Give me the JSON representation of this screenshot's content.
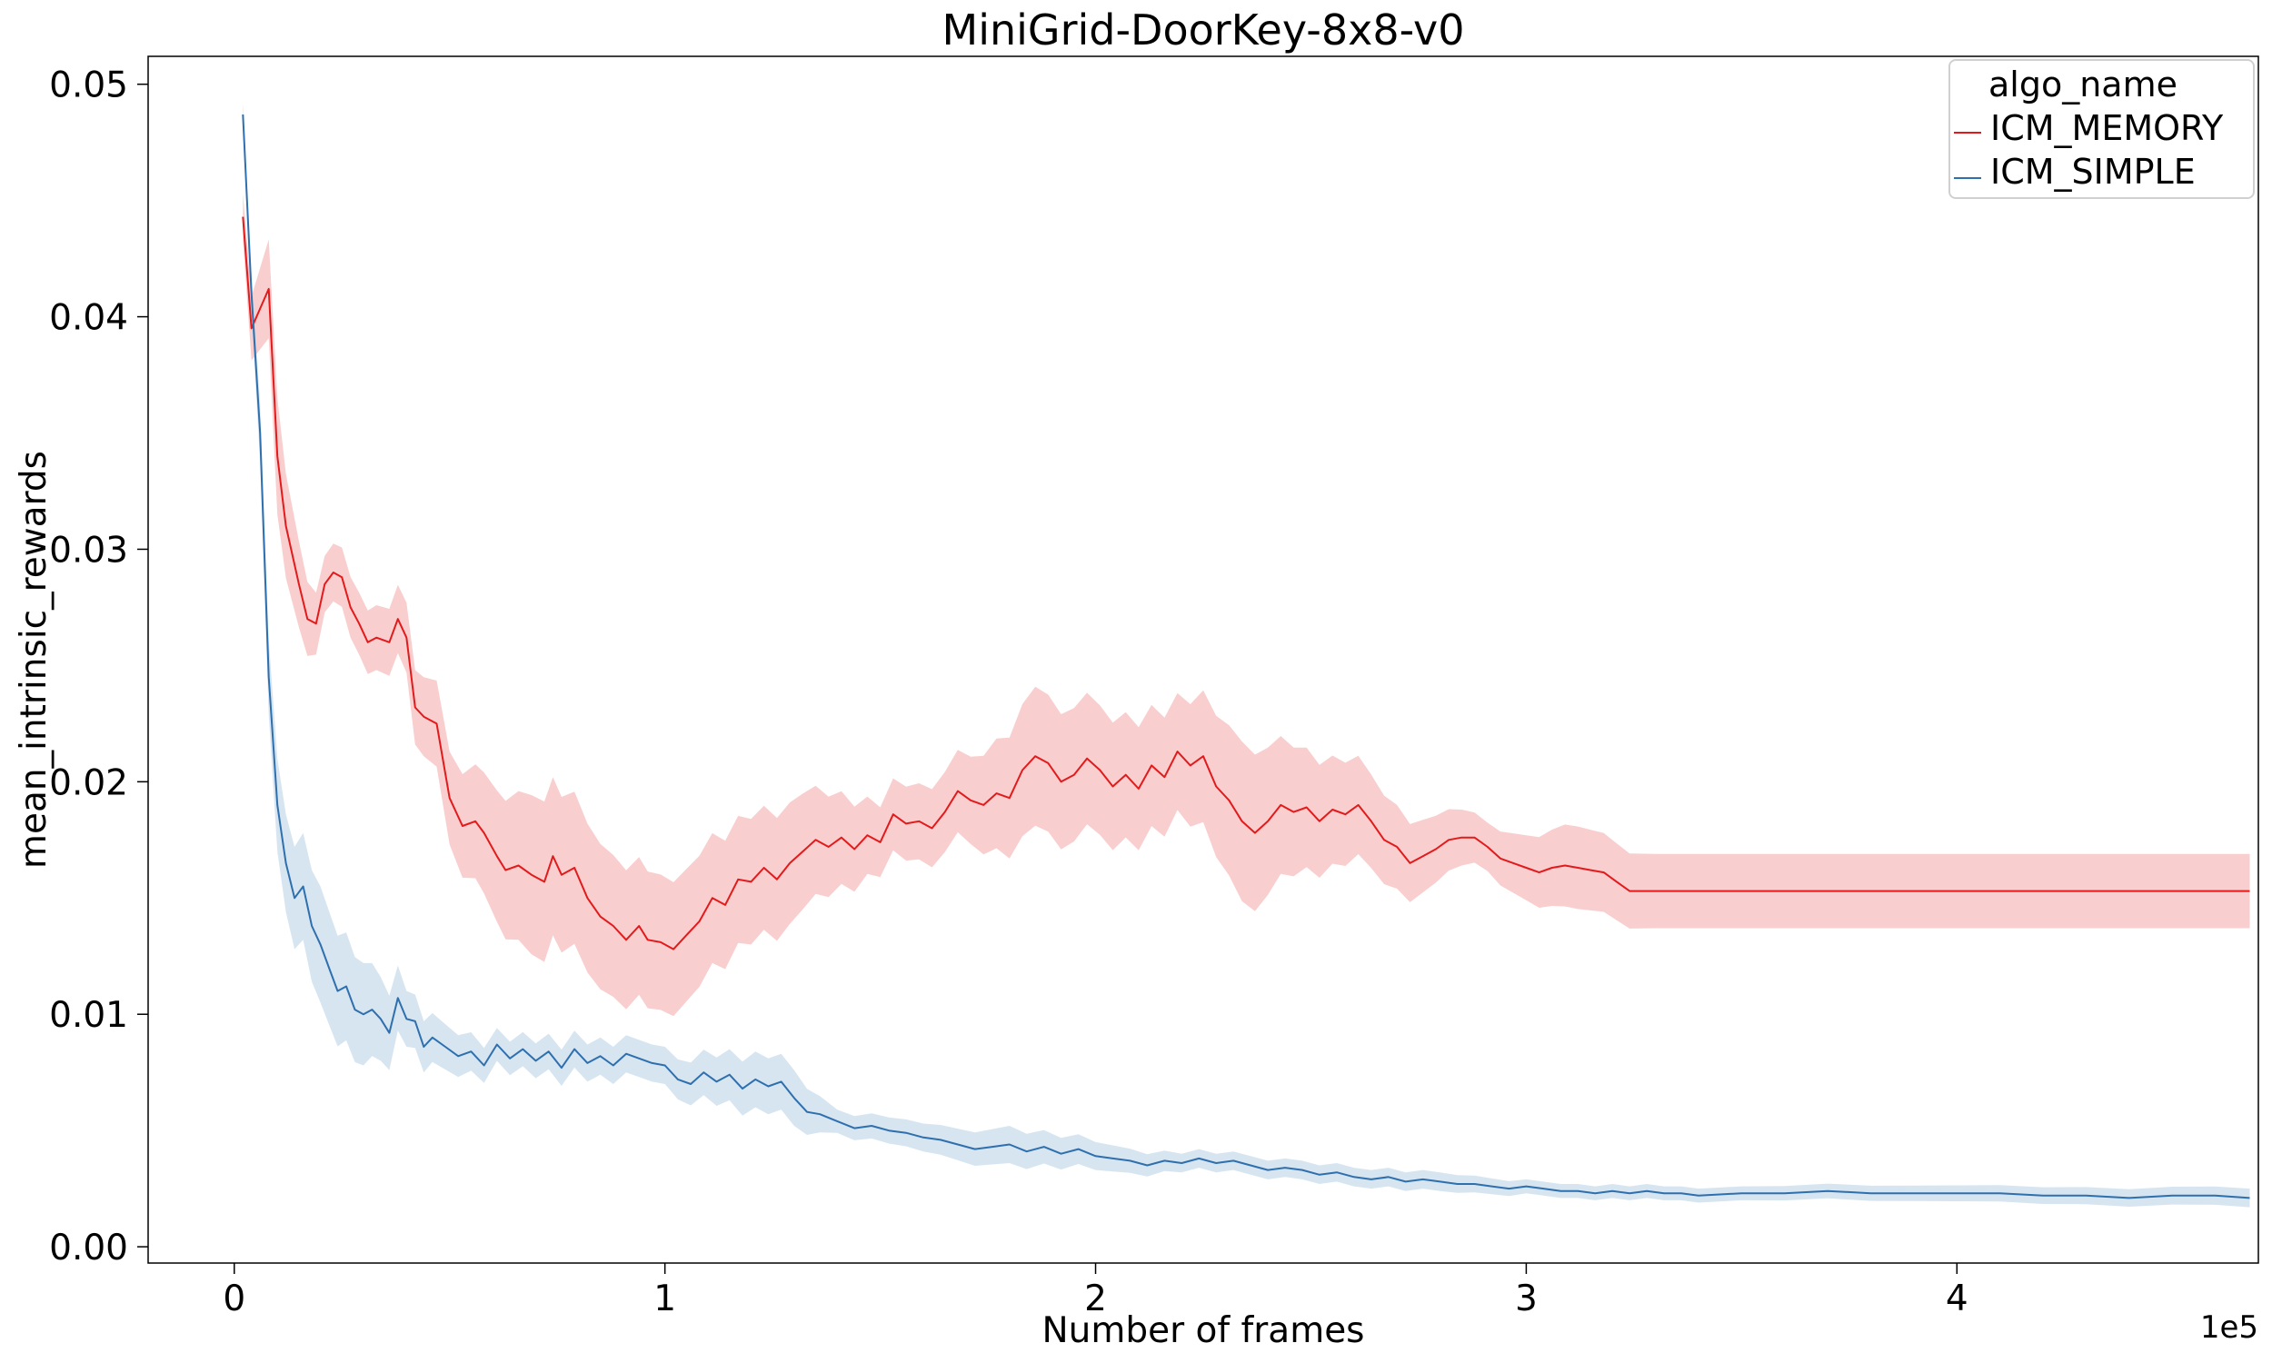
{
  "chart_data": {
    "type": "line",
    "title": "MiniGrid-DoorKey-8x8-v0",
    "xlabel": "Number of frames",
    "ylabel": "mean_intrinsic_rewards",
    "x_offset_label": "1e5",
    "xlim": [
      -0.2,
      4.7
    ],
    "ylim": [
      -0.0007,
      0.0512
    ],
    "x_ticks": [
      0,
      1,
      2,
      3,
      4
    ],
    "x_tick_labels": [
      "0",
      "1",
      "2",
      "3",
      "4"
    ],
    "y_ticks": [
      0.0,
      0.01,
      0.02,
      0.03,
      0.04,
      0.05
    ],
    "y_tick_labels": [
      "0.00",
      "0.01",
      "0.02",
      "0.03",
      "0.04",
      "0.05"
    ],
    "grid": false,
    "legend": {
      "title": "algo_name",
      "position": "top-right"
    },
    "series": [
      {
        "name": "ICM_MEMORY",
        "color": "#e31a1c",
        "band_color": "#f4a6a6",
        "points": [
          [
            0.02,
            0.0443
          ],
          [
            0.04,
            0.0395
          ],
          [
            0.08,
            0.0412
          ],
          [
            0.1,
            0.034
          ],
          [
            0.12,
            0.031
          ],
          [
            0.15,
            0.0285
          ],
          [
            0.17,
            0.027
          ],
          [
            0.19,
            0.0268
          ],
          [
            0.21,
            0.0285
          ],
          [
            0.23,
            0.029
          ],
          [
            0.25,
            0.0288
          ],
          [
            0.27,
            0.0275
          ],
          [
            0.29,
            0.0268
          ],
          [
            0.31,
            0.026
          ],
          [
            0.33,
            0.0262
          ],
          [
            0.36,
            0.026
          ],
          [
            0.38,
            0.027
          ],
          [
            0.4,
            0.0262
          ],
          [
            0.42,
            0.0232
          ],
          [
            0.44,
            0.0228
          ],
          [
            0.47,
            0.0225
          ],
          [
            0.5,
            0.0193
          ],
          [
            0.53,
            0.0181
          ],
          [
            0.56,
            0.0183
          ],
          [
            0.58,
            0.0178
          ],
          [
            0.61,
            0.0168
          ],
          [
            0.63,
            0.0162
          ],
          [
            0.66,
            0.0164
          ],
          [
            0.69,
            0.016
          ],
          [
            0.72,
            0.0157
          ],
          [
            0.74,
            0.0168
          ],
          [
            0.76,
            0.016
          ],
          [
            0.79,
            0.0163
          ],
          [
            0.82,
            0.015
          ],
          [
            0.85,
            0.0142
          ],
          [
            0.88,
            0.0138
          ],
          [
            0.91,
            0.0132
          ],
          [
            0.94,
            0.0138
          ],
          [
            0.96,
            0.0132
          ],
          [
            0.99,
            0.0131
          ],
          [
            1.02,
            0.0128
          ],
          [
            1.05,
            0.0134
          ],
          [
            1.08,
            0.014
          ],
          [
            1.11,
            0.015
          ],
          [
            1.14,
            0.0147
          ],
          [
            1.17,
            0.0158
          ],
          [
            1.2,
            0.0157
          ],
          [
            1.23,
            0.0163
          ],
          [
            1.26,
            0.0158
          ],
          [
            1.29,
            0.0165
          ],
          [
            1.32,
            0.017
          ],
          [
            1.35,
            0.0175
          ],
          [
            1.38,
            0.0172
          ],
          [
            1.41,
            0.0176
          ],
          [
            1.44,
            0.0171
          ],
          [
            1.47,
            0.0177
          ],
          [
            1.5,
            0.0174
          ],
          [
            1.53,
            0.0186
          ],
          [
            1.56,
            0.0182
          ],
          [
            1.59,
            0.0183
          ],
          [
            1.62,
            0.018
          ],
          [
            1.65,
            0.0187
          ],
          [
            1.68,
            0.0196
          ],
          [
            1.71,
            0.0192
          ],
          [
            1.74,
            0.019
          ],
          [
            1.77,
            0.0195
          ],
          [
            1.8,
            0.0193
          ],
          [
            1.83,
            0.0205
          ],
          [
            1.86,
            0.0211
          ],
          [
            1.89,
            0.0208
          ],
          [
            1.92,
            0.02
          ],
          [
            1.95,
            0.0203
          ],
          [
            1.98,
            0.021
          ],
          [
            2.01,
            0.0205
          ],
          [
            2.04,
            0.0198
          ],
          [
            2.07,
            0.0203
          ],
          [
            2.1,
            0.0197
          ],
          [
            2.13,
            0.0207
          ],
          [
            2.16,
            0.0202
          ],
          [
            2.19,
            0.0213
          ],
          [
            2.22,
            0.0207
          ],
          [
            2.25,
            0.0211
          ],
          [
            2.28,
            0.0198
          ],
          [
            2.31,
            0.0192
          ],
          [
            2.34,
            0.0183
          ],
          [
            2.37,
            0.0178
          ],
          [
            2.4,
            0.0183
          ],
          [
            2.43,
            0.019
          ],
          [
            2.46,
            0.0187
          ],
          [
            2.49,
            0.0189
          ],
          [
            2.52,
            0.0183
          ],
          [
            2.55,
            0.0188
          ],
          [
            2.58,
            0.0186
          ],
          [
            2.61,
            0.019
          ],
          [
            2.64,
            0.0183
          ],
          [
            2.67,
            0.0175
          ],
          [
            2.7,
            0.0172
          ],
          [
            2.73,
            0.0165
          ],
          [
            2.76,
            0.0168
          ],
          [
            2.79,
            0.0171
          ],
          [
            2.82,
            0.0175
          ],
          [
            2.85,
            0.0176
          ],
          [
            2.88,
            0.0176
          ],
          [
            2.91,
            0.0172
          ],
          [
            2.94,
            0.0167
          ],
          [
            2.97,
            0.0165
          ],
          [
            3.0,
            0.0163
          ],
          [
            3.03,
            0.0161
          ],
          [
            3.06,
            0.0163
          ],
          [
            3.09,
            0.0164
          ],
          [
            3.12,
            0.0163
          ],
          [
            3.15,
            0.0162
          ],
          [
            3.18,
            0.0161
          ],
          [
            3.21,
            0.0157
          ],
          [
            3.24,
            0.0153
          ],
          [
            3.3,
            0.0153
          ],
          [
            3.6,
            0.0153
          ],
          [
            4.0,
            0.0153
          ],
          [
            4.4,
            0.0153
          ],
          [
            4.68,
            0.0153
          ]
        ],
        "band_halfwidths": [
          [
            0.02,
            0.001
          ],
          [
            0.1,
            0.0025
          ],
          [
            0.2,
            0.0012
          ],
          [
            0.4,
            0.0015
          ],
          [
            0.5,
            0.002
          ],
          [
            0.7,
            0.0035
          ],
          [
            0.9,
            0.003
          ],
          [
            1.1,
            0.0028
          ],
          [
            1.3,
            0.0026
          ],
          [
            1.5,
            0.0015
          ],
          [
            1.7,
            0.0018
          ],
          [
            1.85,
            0.003
          ],
          [
            2.0,
            0.0028
          ],
          [
            2.2,
            0.0025
          ],
          [
            2.35,
            0.0035
          ],
          [
            2.5,
            0.0025
          ],
          [
            2.7,
            0.0018
          ],
          [
            2.9,
            0.001
          ],
          [
            3.1,
            0.0018
          ],
          [
            3.25,
            0.0016
          ],
          [
            4.68,
            0.0016
          ]
        ]
      },
      {
        "name": "ICM_SIMPLE",
        "color": "#2e6fae",
        "band_color": "#b7cfe6",
        "points": [
          [
            0.02,
            0.0487
          ],
          [
            0.04,
            0.041
          ],
          [
            0.06,
            0.035
          ],
          [
            0.08,
            0.0245
          ],
          [
            0.1,
            0.019
          ],
          [
            0.12,
            0.0165
          ],
          [
            0.14,
            0.015
          ],
          [
            0.16,
            0.0155
          ],
          [
            0.18,
            0.0138
          ],
          [
            0.2,
            0.013
          ],
          [
            0.22,
            0.012
          ],
          [
            0.24,
            0.011
          ],
          [
            0.26,
            0.0112
          ],
          [
            0.28,
            0.0102
          ],
          [
            0.3,
            0.01
          ],
          [
            0.32,
            0.0102
          ],
          [
            0.34,
            0.0098
          ],
          [
            0.36,
            0.0092
          ],
          [
            0.38,
            0.0107
          ],
          [
            0.4,
            0.0098
          ],
          [
            0.42,
            0.0097
          ],
          [
            0.44,
            0.0086
          ],
          [
            0.46,
            0.009
          ],
          [
            0.49,
            0.0086
          ],
          [
            0.52,
            0.0082
          ],
          [
            0.55,
            0.0084
          ],
          [
            0.58,
            0.0078
          ],
          [
            0.61,
            0.0087
          ],
          [
            0.64,
            0.0081
          ],
          [
            0.67,
            0.0085
          ],
          [
            0.7,
            0.008
          ],
          [
            0.73,
            0.0084
          ],
          [
            0.76,
            0.0077
          ],
          [
            0.79,
            0.0085
          ],
          [
            0.82,
            0.0079
          ],
          [
            0.85,
            0.0082
          ],
          [
            0.88,
            0.0078
          ],
          [
            0.91,
            0.0083
          ],
          [
            0.94,
            0.0081
          ],
          [
            0.97,
            0.0079
          ],
          [
            1.0,
            0.0078
          ],
          [
            1.03,
            0.0072
          ],
          [
            1.06,
            0.007
          ],
          [
            1.09,
            0.0075
          ],
          [
            1.12,
            0.0071
          ],
          [
            1.15,
            0.0074
          ],
          [
            1.18,
            0.0068
          ],
          [
            1.21,
            0.0072
          ],
          [
            1.24,
            0.0069
          ],
          [
            1.27,
            0.0071
          ],
          [
            1.3,
            0.0064
          ],
          [
            1.33,
            0.0058
          ],
          [
            1.36,
            0.0057
          ],
          [
            1.4,
            0.0054
          ],
          [
            1.44,
            0.0051
          ],
          [
            1.48,
            0.0052
          ],
          [
            1.52,
            0.005
          ],
          [
            1.56,
            0.0049
          ],
          [
            1.6,
            0.0047
          ],
          [
            1.64,
            0.0046
          ],
          [
            1.68,
            0.0044
          ],
          [
            1.72,
            0.0042
          ],
          [
            1.76,
            0.0043
          ],
          [
            1.8,
            0.0044
          ],
          [
            1.84,
            0.0041
          ],
          [
            1.88,
            0.0043
          ],
          [
            1.92,
            0.004
          ],
          [
            1.96,
            0.0042
          ],
          [
            2.0,
            0.0039
          ],
          [
            2.04,
            0.0038
          ],
          [
            2.08,
            0.0037
          ],
          [
            2.12,
            0.0035
          ],
          [
            2.16,
            0.0037
          ],
          [
            2.2,
            0.0036
          ],
          [
            2.24,
            0.0038
          ],
          [
            2.28,
            0.0036
          ],
          [
            2.32,
            0.0037
          ],
          [
            2.36,
            0.0035
          ],
          [
            2.4,
            0.0033
          ],
          [
            2.44,
            0.0034
          ],
          [
            2.48,
            0.0033
          ],
          [
            2.52,
            0.0031
          ],
          [
            2.56,
            0.0032
          ],
          [
            2.6,
            0.003
          ],
          [
            2.64,
            0.0029
          ],
          [
            2.68,
            0.003
          ],
          [
            2.72,
            0.0028
          ],
          [
            2.76,
            0.0029
          ],
          [
            2.8,
            0.0028
          ],
          [
            2.84,
            0.0027
          ],
          [
            2.88,
            0.0027
          ],
          [
            2.92,
            0.0026
          ],
          [
            2.96,
            0.0025
          ],
          [
            3.0,
            0.0026
          ],
          [
            3.04,
            0.0025
          ],
          [
            3.08,
            0.0024
          ],
          [
            3.12,
            0.0024
          ],
          [
            3.16,
            0.0023
          ],
          [
            3.2,
            0.0024
          ],
          [
            3.24,
            0.0023
          ],
          [
            3.28,
            0.0024
          ],
          [
            3.32,
            0.0023
          ],
          [
            3.36,
            0.0023
          ],
          [
            3.4,
            0.0022
          ],
          [
            3.5,
            0.0023
          ],
          [
            3.6,
            0.0023
          ],
          [
            3.7,
            0.0024
          ],
          [
            3.8,
            0.0023
          ],
          [
            3.9,
            0.0023
          ],
          [
            4.0,
            0.0023
          ],
          [
            4.1,
            0.0023
          ],
          [
            4.2,
            0.0022
          ],
          [
            4.3,
            0.0022
          ],
          [
            4.4,
            0.0021
          ],
          [
            4.5,
            0.0022
          ],
          [
            4.6,
            0.0022
          ],
          [
            4.68,
            0.0021
          ]
        ],
        "band_halfwidths": [
          [
            0.02,
            0.0005
          ],
          [
            0.1,
            0.002
          ],
          [
            0.2,
            0.0025
          ],
          [
            0.3,
            0.0022
          ],
          [
            0.4,
            0.0012
          ],
          [
            0.6,
            0.0007
          ],
          [
            0.8,
            0.0008
          ],
          [
            1.0,
            0.0008
          ],
          [
            1.2,
            0.0012
          ],
          [
            1.3,
            0.0012
          ],
          [
            1.4,
            0.0005
          ],
          [
            1.6,
            0.0006
          ],
          [
            1.8,
            0.0008
          ],
          [
            2.0,
            0.0006
          ],
          [
            2.2,
            0.0004
          ],
          [
            2.5,
            0.0004
          ],
          [
            2.8,
            0.0004
          ],
          [
            3.0,
            0.0003
          ],
          [
            3.5,
            0.0003
          ],
          [
            4.68,
            0.0004
          ]
        ]
      }
    ]
  }
}
